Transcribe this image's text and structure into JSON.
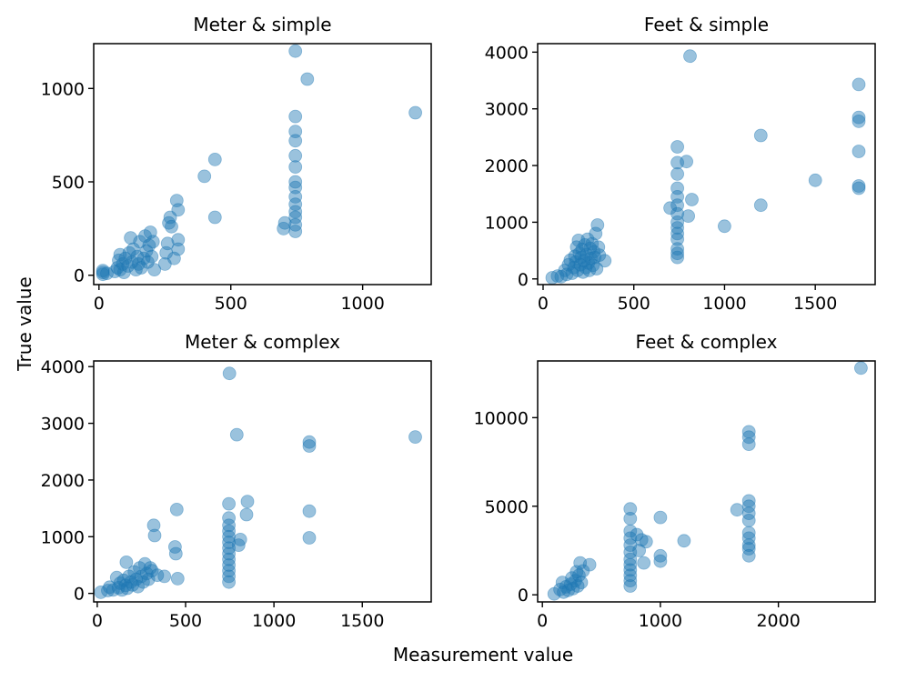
{
  "figure": {
    "xlabel": "Measurement value",
    "ylabel": "True value",
    "point_color": "#1f77b4",
    "point_alpha": 0.45
  },
  "chart_data": [
    {
      "type": "scatter",
      "title": "Meter & simple",
      "xlim": [
        -20,
        1260
      ],
      "ylim": [
        -50,
        1240
      ],
      "xticks": [
        0,
        500,
        1000
      ],
      "yticks": [
        0,
        500,
        1000
      ],
      "xticklabels": [
        "0",
        "500",
        "1000"
      ],
      "yticklabels": [
        "0",
        "500",
        "1000"
      ],
      "points": [
        [
          15,
          5
        ],
        [
          15,
          15
        ],
        [
          15,
          25
        ],
        [
          30,
          10
        ],
        [
          60,
          20
        ],
        [
          70,
          40
        ],
        [
          75,
          80
        ],
        [
          80,
          110
        ],
        [
          80,
          30
        ],
        [
          90,
          60
        ],
        [
          95,
          15
        ],
        [
          100,
          90
        ],
        [
          110,
          50
        ],
        [
          115,
          120
        ],
        [
          120,
          200
        ],
        [
          125,
          70
        ],
        [
          130,
          140
        ],
        [
          140,
          30
        ],
        [
          145,
          100
        ],
        [
          150,
          60
        ],
        [
          155,
          180
        ],
        [
          160,
          40
        ],
        [
          170,
          90
        ],
        [
          175,
          210
        ],
        [
          180,
          130
        ],
        [
          185,
          70
        ],
        [
          190,
          160
        ],
        [
          195,
          230
        ],
        [
          200,
          100
        ],
        [
          205,
          180
        ],
        [
          210,
          30
        ],
        [
          250,
          60
        ],
        [
          255,
          120
        ],
        [
          260,
          170
        ],
        [
          265,
          280
        ],
        [
          270,
          310
        ],
        [
          275,
          260
        ],
        [
          285,
          90
        ],
        [
          295,
          400
        ],
        [
          300,
          350
        ],
        [
          300,
          140
        ],
        [
          300,
          190
        ],
        [
          400,
          530
        ],
        [
          440,
          620
        ],
        [
          440,
          310
        ],
        [
          700,
          250
        ],
        [
          705,
          280
        ],
        [
          745,
          1200
        ],
        [
          745,
          850
        ],
        [
          745,
          770
        ],
        [
          745,
          720
        ],
        [
          745,
          640
        ],
        [
          745,
          580
        ],
        [
          745,
          500
        ],
        [
          745,
          470
        ],
        [
          745,
          420
        ],
        [
          745,
          380
        ],
        [
          745,
          340
        ],
        [
          745,
          310
        ],
        [
          745,
          270
        ],
        [
          745,
          235
        ],
        [
          790,
          1050
        ],
        [
          1200,
          870
        ]
      ]
    },
    {
      "type": "scatter",
      "title": "Feet & simple",
      "xlim": [
        -30,
        1830
      ],
      "ylim": [
        -100,
        4150
      ],
      "xticks": [
        0,
        500,
        1000,
        1500
      ],
      "yticks": [
        0,
        1000,
        2000,
        3000,
        4000
      ],
      "xticklabels": [
        "0",
        "500",
        "1000",
        "1500"
      ],
      "yticklabels": [
        "0",
        "1000",
        "2000",
        "3000",
        "4000"
      ],
      "points": [
        [
          50,
          20
        ],
        [
          80,
          50
        ],
        [
          100,
          40
        ],
        [
          120,
          150
        ],
        [
          130,
          80
        ],
        [
          140,
          250
        ],
        [
          150,
          330
        ],
        [
          160,
          100
        ],
        [
          170,
          200
        ],
        [
          175,
          400
        ],
        [
          180,
          300
        ],
        [
          185,
          560
        ],
        [
          190,
          150
        ],
        [
          195,
          680
        ],
        [
          200,
          450
        ],
        [
          205,
          250
        ],
        [
          210,
          380
        ],
        [
          215,
          520
        ],
        [
          220,
          120
        ],
        [
          225,
          320
        ],
        [
          230,
          600
        ],
        [
          235,
          200
        ],
        [
          240,
          430
        ],
        [
          245,
          700
        ],
        [
          250,
          280
        ],
        [
          255,
          150
        ],
        [
          260,
          540
        ],
        [
          265,
          360
        ],
        [
          270,
          620
        ],
        [
          275,
          240
        ],
        [
          280,
          480
        ],
        [
          285,
          380
        ],
        [
          290,
          800
        ],
        [
          295,
          180
        ],
        [
          300,
          950
        ],
        [
          305,
          560
        ],
        [
          310,
          420
        ],
        [
          340,
          320
        ],
        [
          700,
          1250
        ],
        [
          740,
          2330
        ],
        [
          740,
          2050
        ],
        [
          740,
          1850
        ],
        [
          740,
          1600
        ],
        [
          740,
          1450
        ],
        [
          740,
          1300
        ],
        [
          740,
          1150
        ],
        [
          740,
          1000
        ],
        [
          740,
          900
        ],
        [
          740,
          800
        ],
        [
          740,
          700
        ],
        [
          740,
          530
        ],
        [
          740,
          450
        ],
        [
          740,
          380
        ],
        [
          790,
          2070
        ],
        [
          800,
          1110
        ],
        [
          810,
          3930
        ],
        [
          820,
          1400
        ],
        [
          1000,
          930
        ],
        [
          1200,
          2530
        ],
        [
          1200,
          1300
        ],
        [
          1500,
          1740
        ],
        [
          1740,
          3430
        ],
        [
          1740,
          2850
        ],
        [
          1740,
          2780
        ],
        [
          1740,
          2250
        ],
        [
          1740,
          1640
        ],
        [
          1740,
          1600
        ]
      ]
    },
    {
      "type": "scatter",
      "title": "Meter & complex",
      "xlim": [
        -20,
        1890
      ],
      "ylim": [
        -150,
        4100
      ],
      "xticks": [
        0,
        500,
        1000,
        1500
      ],
      "yticks": [
        0,
        1000,
        2000,
        3000,
        4000
      ],
      "xticklabels": [
        "0",
        "500",
        "1000",
        "1500"
      ],
      "yticklabels": [
        "0",
        "1000",
        "2000",
        "3000",
        "4000"
      ],
      "points": [
        [
          20,
          20
        ],
        [
          60,
          50
        ],
        [
          70,
          110
        ],
        [
          90,
          60
        ],
        [
          110,
          280
        ],
        [
          120,
          100
        ],
        [
          130,
          180
        ],
        [
          140,
          60
        ],
        [
          150,
          230
        ],
        [
          160,
          140
        ],
        [
          165,
          550
        ],
        [
          170,
          90
        ],
        [
          180,
          300
        ],
        [
          190,
          200
        ],
        [
          200,
          150
        ],
        [
          210,
          380
        ],
        [
          220,
          250
        ],
        [
          230,
          120
        ],
        [
          240,
          450
        ],
        [
          250,
          300
        ],
        [
          260,
          200
        ],
        [
          270,
          520
        ],
        [
          280,
          350
        ],
        [
          290,
          250
        ],
        [
          300,
          450
        ],
        [
          310,
          400
        ],
        [
          320,
          1200
        ],
        [
          325,
          1020
        ],
        [
          340,
          320
        ],
        [
          380,
          300
        ],
        [
          440,
          820
        ],
        [
          445,
          700
        ],
        [
          450,
          1480
        ],
        [
          455,
          260
        ],
        [
          745,
          1580
        ],
        [
          745,
          1330
        ],
        [
          745,
          1200
        ],
        [
          745,
          1100
        ],
        [
          745,
          1000
        ],
        [
          745,
          900
        ],
        [
          745,
          800
        ],
        [
          745,
          700
        ],
        [
          745,
          600
        ],
        [
          745,
          500
        ],
        [
          745,
          400
        ],
        [
          745,
          300
        ],
        [
          745,
          200
        ],
        [
          748,
          3880
        ],
        [
          790,
          2800
        ],
        [
          800,
          850
        ],
        [
          810,
          950
        ],
        [
          845,
          1390
        ],
        [
          850,
          1620
        ],
        [
          1200,
          2670
        ],
        [
          1200,
          2600
        ],
        [
          1200,
          1450
        ],
        [
          1200,
          980
        ],
        [
          1800,
          2760
        ]
      ]
    },
    {
      "type": "scatter",
      "title": "Feet & complex",
      "xlim": [
        -40,
        2820
      ],
      "ylim": [
        -400,
        13200
      ],
      "xticks": [
        0,
        1000,
        2000
      ],
      "yticks": [
        0,
        5000,
        10000
      ],
      "xticklabels": [
        "0",
        "1000",
        "2000"
      ],
      "yticklabels": [
        "0",
        "5000",
        "10000"
      ],
      "points": [
        [
          100,
          50
        ],
        [
          150,
          300
        ],
        [
          170,
          700
        ],
        [
          180,
          150
        ],
        [
          200,
          450
        ],
        [
          220,
          250
        ],
        [
          240,
          600
        ],
        [
          250,
          950
        ],
        [
          260,
          350
        ],
        [
          280,
          800
        ],
        [
          290,
          1300
        ],
        [
          300,
          500
        ],
        [
          310,
          1100
        ],
        [
          320,
          1800
        ],
        [
          330,
          700
        ],
        [
          345,
          1350
        ],
        [
          400,
          1700
        ],
        [
          745,
          4850
        ],
        [
          745,
          4300
        ],
        [
          745,
          3600
        ],
        [
          745,
          3200
        ],
        [
          745,
          2800
        ],
        [
          745,
          2400
        ],
        [
          745,
          2000
        ],
        [
          745,
          1700
        ],
        [
          745,
          1400
        ],
        [
          745,
          1100
        ],
        [
          745,
          800
        ],
        [
          745,
          500
        ],
        [
          800,
          3400
        ],
        [
          820,
          2500
        ],
        [
          840,
          3100
        ],
        [
          860,
          1800
        ],
        [
          880,
          3000
        ],
        [
          1000,
          4370
        ],
        [
          1000,
          2200
        ],
        [
          1000,
          1900
        ],
        [
          1200,
          3050
        ],
        [
          1650,
          4800
        ],
        [
          1750,
          9200
        ],
        [
          1750,
          8900
        ],
        [
          1750,
          8500
        ],
        [
          1750,
          5300
        ],
        [
          1750,
          5000
        ],
        [
          1750,
          4600
        ],
        [
          1750,
          4200
        ],
        [
          1750,
          3500
        ],
        [
          1750,
          3200
        ],
        [
          1750,
          2800
        ],
        [
          1750,
          2600
        ],
        [
          1750,
          2200
        ],
        [
          2700,
          12800
        ]
      ]
    }
  ]
}
